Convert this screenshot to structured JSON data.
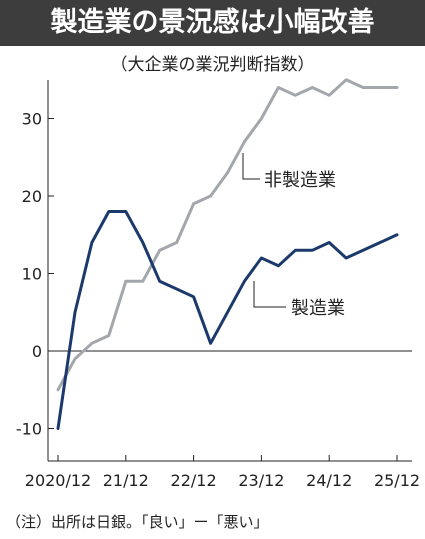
{
  "title": "製造業の景況感は小幅改善",
  "subtitle": "（大企業の業況判断指数）",
  "note": "（注）出所は日銀。「良い」ー「悪い」",
  "chart_data": {
    "type": "line",
    "title": "製造業の景況感は小幅改善",
    "subtitle": "（大企業の業況判断指数）",
    "xlabel": "",
    "ylabel": "",
    "ylim": [
      -12,
      37
    ],
    "yticks": [
      -10,
      0,
      10,
      20,
      30
    ],
    "ytick_labels": [
      "-10",
      "0",
      "10",
      "20",
      "30"
    ],
    "xtick_labels": [
      "2020/12",
      "21/12",
      "22/12",
      "23/12",
      "24/12",
      "25/12"
    ],
    "x": [
      "2020/12",
      "21/3",
      "21/6",
      "21/9",
      "21/12",
      "22/3",
      "22/6",
      "22/9",
      "22/12",
      "23/3",
      "23/6",
      "23/9",
      "23/12",
      "24/3",
      "24/6",
      "24/9",
      "24/12",
      "25/3",
      "25/6",
      "25/9",
      "25/12"
    ],
    "series": [
      {
        "name": "製造業",
        "color": "#1b3a6b",
        "values": [
          -10,
          5,
          14,
          18,
          18,
          14,
          9,
          8,
          7,
          1,
          5,
          9,
          12,
          11,
          13,
          13,
          14,
          12,
          13,
          14,
          15
        ]
      },
      {
        "name": "非製造業",
        "color": "#a3a7ab",
        "values": [
          -5,
          -1,
          1,
          2,
          9,
          9,
          13,
          14,
          19,
          20,
          23,
          27,
          30,
          34,
          33,
          34,
          33,
          35,
          34,
          34,
          34
        ]
      }
    ],
    "grid": false,
    "legend": "direct-labels"
  }
}
